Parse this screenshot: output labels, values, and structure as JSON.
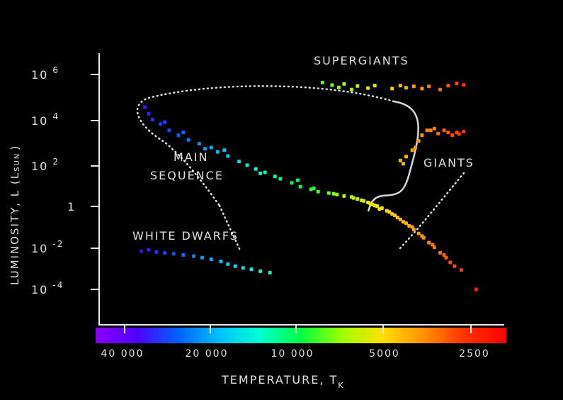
{
  "chart_data": {
    "type": "scatter",
    "title": "",
    "ylabel": "LUMINOSITY, L (L",
    "ylabel_sub": "SUN",
    "ylabel_end": ")",
    "xlabel": "TEMPERATURE, T",
    "xlabel_sub": "K",
    "y_scale": "log",
    "x_scale": "log-reversed",
    "grid": false,
    "y_ticks": [
      {
        "value": 1000000.0,
        "base": "10",
        "exp": "6"
      },
      {
        "value": 10000.0,
        "base": "10",
        "exp": "4"
      },
      {
        "value": 100.0,
        "base": "10",
        "exp": "2"
      },
      {
        "value": 1,
        "base": "1",
        "exp": ""
      },
      {
        "value": 0.01,
        "base": "10",
        "exp": "-2"
      },
      {
        "value": 0.0001,
        "base": "10",
        "exp": "-4"
      }
    ],
    "x_ticks": [
      {
        "value": 40000,
        "label": "40 000"
      },
      {
        "value": 20000,
        "label": "20 000"
      },
      {
        "value": 10000,
        "label": "10 000"
      },
      {
        "value": 5000,
        "label": "5000"
      },
      {
        "value": 2500,
        "label": "2500"
      }
    ],
    "color_bar": [
      "#8b00ff",
      "#5000ff",
      "#0060ff",
      "#00c0ff",
      "#00ffd0",
      "#00ff40",
      "#a0ff00",
      "#ffe000",
      "#ff9000",
      "#ff3000",
      "#ff0000"
    ],
    "annotations": [
      {
        "id": "supergiants",
        "text": "SUPERGIANTS"
      },
      {
        "id": "giants",
        "text": "GIANTS"
      },
      {
        "id": "main-sequence-1",
        "text": "MAIN"
      },
      {
        "id": "main-sequence-2",
        "text": "SEQUENCE"
      },
      {
        "id": "white-dwarfs",
        "text": "WHITE DWARFS"
      }
    ],
    "series": [
      {
        "name": "MAIN SEQUENCE",
        "points": [
          [
            34000,
            30000
          ],
          [
            33000,
            15000
          ],
          [
            32000,
            8000
          ],
          [
            30000,
            5000
          ],
          [
            28000,
            2500
          ],
          [
            26000,
            1500
          ],
          [
            24000,
            900
          ],
          [
            22000,
            600
          ],
          [
            21000,
            350
          ],
          [
            19000,
            250
          ],
          [
            17500,
            160
          ],
          [
            16000,
            90
          ],
          [
            15000,
            60
          ],
          [
            14000,
            40
          ],
          [
            13000,
            28
          ],
          [
            12000,
            18
          ],
          [
            11500,
            14
          ],
          [
            10500,
            9
          ],
          [
            9800,
            6
          ],
          [
            9000,
            4.5
          ],
          [
            8500,
            3.5
          ],
          [
            7800,
            3
          ],
          [
            7300,
            2.6
          ],
          [
            6900,
            2.2
          ],
          [
            6500,
            2
          ],
          [
            6200,
            1.6
          ],
          [
            5900,
            1.3
          ],
          [
            5700,
            1.1
          ],
          [
            5500,
            0.9
          ],
          [
            5300,
            0.75
          ],
          [
            5100,
            0.6
          ],
          [
            4900,
            0.45
          ],
          [
            4700,
            0.32
          ],
          [
            4500,
            0.22
          ],
          [
            4300,
            0.14
          ],
          [
            4100,
            0.09
          ],
          [
            3950,
            0.06
          ],
          [
            3800,
            0.04
          ],
          [
            3650,
            0.025
          ],
          [
            3500,
            0.015
          ],
          [
            3350,
            0.009
          ],
          [
            3200,
            0.005
          ],
          [
            3050,
            0.003
          ],
          [
            2950,
            0.0018
          ],
          [
            2850,
            0.0012
          ],
          [
            2400,
            0.0001
          ],
          [
            29000,
            6000
          ],
          [
            25000,
            2000
          ],
          [
            20000,
            400
          ],
          [
            18000,
            300
          ],
          [
            13500,
            25
          ],
          [
            10000,
            12
          ],
          [
            8800,
            5
          ],
          [
            7500,
            2.8
          ],
          [
            6400,
            1.8
          ],
          [
            6000,
            1.4
          ],
          [
            5600,
            1
          ],
          [
            5400,
            0.8
          ],
          [
            5200,
            0.55
          ],
          [
            4800,
            0.4
          ],
          [
            4600,
            0.28
          ],
          [
            4400,
            0.18
          ],
          [
            4200,
            0.12
          ],
          [
            4000,
            0.08
          ],
          [
            3700,
            0.03
          ],
          [
            3400,
            0.012
          ],
          [
            3100,
            0.004
          ],
          [
            2700,
            0.0008
          ]
        ]
      },
      {
        "name": "GIANTS",
        "points": [
          [
            4400,
            100
          ],
          [
            4300,
            70
          ],
          [
            4200,
            150
          ],
          [
            4000,
            300
          ],
          [
            3900,
            400
          ],
          [
            3800,
            800
          ],
          [
            3700,
            1500
          ],
          [
            3550,
            2500
          ],
          [
            3450,
            2500
          ],
          [
            3350,
            3000
          ],
          [
            3250,
            1800
          ],
          [
            3100,
            2500
          ],
          [
            3000,
            2000
          ],
          [
            2900,
            1500
          ],
          [
            2800,
            2000
          ],
          [
            2750,
            1700
          ],
          [
            2650,
            2200
          ]
        ]
      },
      {
        "name": "SUPERGIANTS",
        "points": [
          [
            8200,
            420000
          ],
          [
            7600,
            320000
          ],
          [
            7200,
            250000
          ],
          [
            6900,
            360000
          ],
          [
            6500,
            200000
          ],
          [
            6200,
            290000
          ],
          [
            5700,
            230000
          ],
          [
            5400,
            300000
          ],
          [
            4700,
            220000
          ],
          [
            4400,
            300000
          ],
          [
            4200,
            240000
          ],
          [
            3950,
            280000
          ],
          [
            3700,
            220000
          ],
          [
            3500,
            280000
          ],
          [
            3200,
            200000
          ],
          [
            3000,
            300000
          ],
          [
            2800,
            380000
          ],
          [
            2650,
            330000
          ]
        ]
      },
      {
        "name": "WHITE DWARFS",
        "points": [
          [
            35000,
            0.006
          ],
          [
            33000,
            0.007
          ],
          [
            31000,
            0.0055
          ],
          [
            29000,
            0.005
          ],
          [
            27000,
            0.0045
          ],
          [
            25000,
            0.004
          ],
          [
            23000,
            0.0035
          ],
          [
            21500,
            0.003
          ],
          [
            20000,
            0.0025
          ],
          [
            18500,
            0.002
          ],
          [
            17500,
            0.0015
          ],
          [
            16500,
            0.0012
          ],
          [
            15500,
            0.001
          ],
          [
            14500,
            0.00085
          ],
          [
            13500,
            0.0007
          ],
          [
            12500,
            0.0006
          ]
        ]
      }
    ]
  }
}
